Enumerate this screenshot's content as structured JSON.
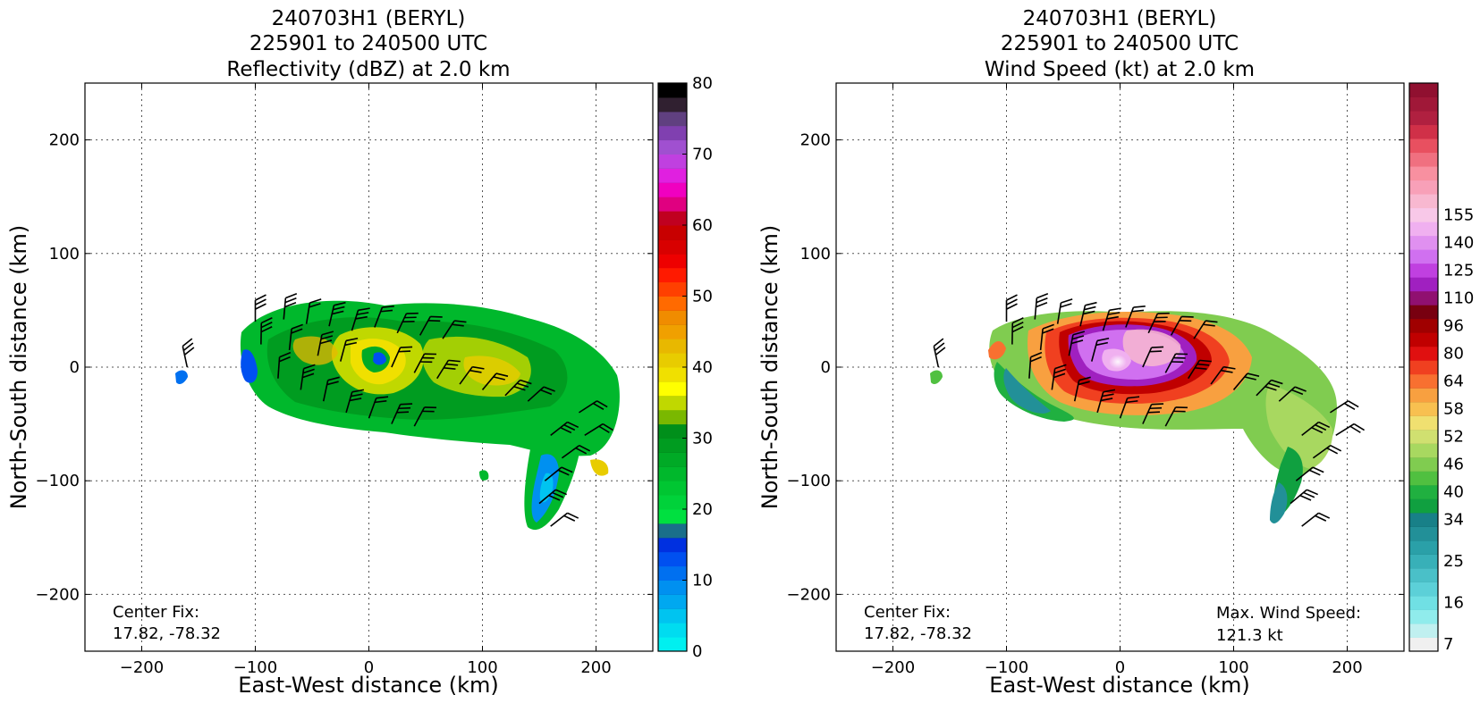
{
  "chart_data": [
    {
      "type": "heatmap",
      "variable": "reflectivity",
      "title_lines": [
        "240703H1 (BERYL)",
        "225901 to 240500 UTC",
        "Reflectivity (dBZ) at 2.0 km"
      ],
      "xlabel": "East-West distance (km)",
      "ylabel": "North-South distance (km)",
      "xlim": [
        -250,
        250
      ],
      "ylim": [
        -250,
        250
      ],
      "xticks": [
        -200,
        -100,
        0,
        100,
        200
      ],
      "yticks": [
        -200,
        -100,
        0,
        100,
        200
      ],
      "grid": true,
      "center_fix_label": "Center Fix:",
      "center_fix_value": "17.82, -78.32",
      "colorbar": {
        "min": 0,
        "max": 80,
        "step": 2.5,
        "tick_labels": [
          "0",
          "10",
          "20",
          "30",
          "40",
          "50",
          "60",
          "70",
          "80"
        ],
        "tick_values": [
          0,
          10,
          20,
          30,
          40,
          50,
          60,
          70,
          80
        ],
        "colors": [
          "#00f0f0",
          "#00dcf0",
          "#00c4f0",
          "#00a8f0",
          "#0090f0",
          "#0070f0",
          "#0050f0",
          "#0030e0",
          "#1a6f8a",
          "#00e040",
          "#00d23a",
          "#00c632",
          "#00b82c",
          "#00aa26",
          "#009c20",
          "#008f1a",
          "#7ab800",
          "#c0d800",
          "#ffff00",
          "#f0e000",
          "#e8cc00",
          "#e8b800",
          "#f0a000",
          "#f08c00",
          "#ff6a00",
          "#ff4000",
          "#ff1a00",
          "#ee0000",
          "#d80000",
          "#c80000",
          "#c00020",
          "#e00080",
          "#f000c0",
          "#e020e0",
          "#c040e0",
          "#a050d0",
          "#8040b0",
          "#604080",
          "#302030",
          "#000000"
        ]
      }
    },
    {
      "type": "heatmap",
      "variable": "wind_speed",
      "title_lines": [
        "240703H1 (BERYL)",
        "225901 to 240500 UTC",
        "Wind Speed (kt) at 2.0 km"
      ],
      "xlabel": "East-West distance (km)",
      "ylabel": "North-South distance (km)",
      "xlim": [
        -250,
        250
      ],
      "ylim": [
        -250,
        250
      ],
      "xticks": [
        -200,
        -100,
        0,
        100,
        200
      ],
      "yticks": [
        -200,
        -100,
        0,
        100,
        200
      ],
      "grid": true,
      "center_fix_label": "Center Fix:",
      "center_fix_value": "17.82, -78.32",
      "max_wind_label": "Max. Wind Speed:",
      "max_wind_value": "121.3 kt",
      "colorbar": {
        "tick_labels": [
          "7",
          "16",
          "25",
          "34",
          "40",
          "46",
          "52",
          "58",
          "64",
          "80",
          "96",
          "110",
          "125",
          "140",
          "155"
        ],
        "tick_levels": [
          0,
          3,
          6,
          9,
          11,
          13,
          15,
          17,
          19,
          21,
          23,
          25,
          27,
          29,
          31
        ],
        "colors": [
          "#f0f0f0",
          "#c0f0f0",
          "#90ecec",
          "#70e0e4",
          "#5cd0d8",
          "#4ac0c8",
          "#38b0b8",
          "#2aa0a8",
          "#229098",
          "#188088",
          "#10a040",
          "#20b040",
          "#50c040",
          "#80cc50",
          "#a8d860",
          "#d0e070",
          "#f0e070",
          "#f8c050",
          "#f8a040",
          "#f87030",
          "#f04020",
          "#e01010",
          "#c00000",
          "#a00000",
          "#780010",
          "#901070",
          "#a020c0",
          "#c040e0",
          "#d070f0",
          "#e090f0",
          "#f0b0f0",
          "#f8c8e8",
          "#f8b8d0",
          "#f8a0b8",
          "#f890a0",
          "#f07080",
          "#e85060",
          "#d03048",
          "#b02040",
          "#a01838",
          "#901030"
        ]
      }
    }
  ]
}
